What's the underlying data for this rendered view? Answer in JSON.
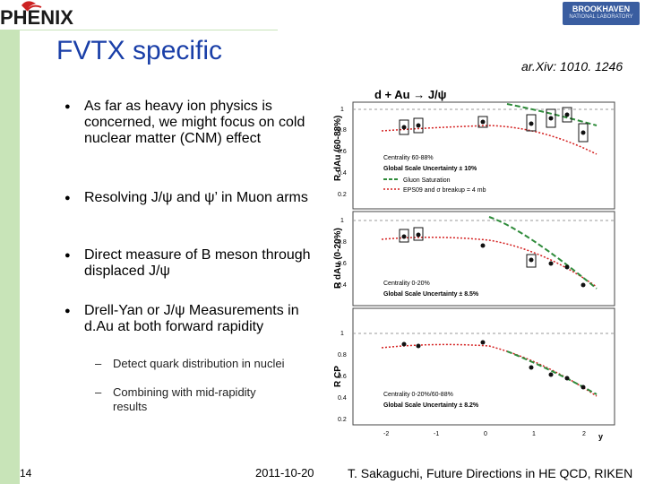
{
  "header": {
    "logo_text": "PHENIX",
    "institution_logo_line1": "BROOKHAVEN",
    "institution_logo_line2": "NATIONAL LABORATORY",
    "title": "FVTX specific",
    "reference": "ar.Xiv: 1010. 1246"
  },
  "bullets": [
    {
      "text": "As far as heavy ion physics is concerned, we might focus on cold nuclear matter (CNM) effect"
    },
    {
      "text": "Resolving J/ψ and ψ’ in Muon arms"
    },
    {
      "text": "Direct measure of B meson through displaced J/ψ"
    },
    {
      "text": "Drell-Yan or J/ψ Measurements in d.Au at both forward rapidity",
      "subitems": [
        "Detect quark distribution in nuclei",
        "Combining with mid-rapidity results"
      ]
    }
  ],
  "figure": {
    "top_label": "d + Au → J/ψ",
    "panels": [
      {
        "ylabel": "R dAu (60-88%)",
        "legend": [
          "Centrality 60-88%",
          "Global Scale Uncertainty ± 10%",
          "Gluon Saturation",
          "EPS09 and σ breakup = 4 mb"
        ]
      },
      {
        "ylabel": "R dAu (0-20%)",
        "legend": [
          "Centrality 0-20%",
          "Global Scale Uncertainty ± 8.5%"
        ]
      },
      {
        "ylabel": "R CP",
        "legend": [
          "Centrality 0-20%/60-88%",
          "Global Scale Uncertainty ± 8.2%"
        ]
      }
    ],
    "yticks": [
      "1",
      "0.8",
      "0.6",
      "0.4",
      "0.2"
    ],
    "xticks": [
      "-2",
      "-1",
      "0",
      "1",
      "2"
    ],
    "xlabel": "y",
    "colors": {
      "data": "#111111",
      "saturation": "#2e8b3a",
      "eps09": "#d42020"
    }
  },
  "footer": {
    "page_number": "14",
    "date": "2011-10-20",
    "author": "T. Sakaguchi, Future Directions in HE QCD, RIKEN"
  }
}
